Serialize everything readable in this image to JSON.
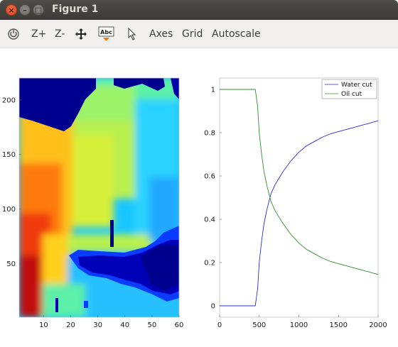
{
  "window": {
    "title": "Figure 1",
    "buttons": [
      "close",
      "minimize",
      "maximize"
    ]
  },
  "toolbar": {
    "items": [
      {
        "kind": "icon",
        "icon": "rotate-icon"
      },
      {
        "kind": "text",
        "label": "Z+"
      },
      {
        "kind": "text",
        "label": "Z-"
      },
      {
        "kind": "icon",
        "icon": "pan-move-icon"
      },
      {
        "kind": "icon",
        "icon": "text-label-icon",
        "glyph": "Abc"
      },
      {
        "kind": "icon",
        "icon": "pointer-icon"
      },
      {
        "kind": "text",
        "label": "Axes"
      },
      {
        "kind": "text",
        "label": "Grid"
      },
      {
        "kind": "text",
        "label": "Autoscale"
      }
    ]
  },
  "chart_data": [
    {
      "type": "heatmap",
      "title": "",
      "xlabel": "",
      "ylabel": "",
      "xlim": [
        1,
        60
      ],
      "ylim": [
        1,
        220
      ],
      "xticks": [
        "10",
        "20",
        "30",
        "40",
        "50",
        "60"
      ],
      "yticks": [
        "50",
        "100",
        "150",
        "200"
      ],
      "colormap": "jet",
      "grid": false,
      "description_of_field": "saturation-like field: high (red/orange) near lower-left injector, low (dark blue) at top-left corner and right-middle pocket"
    },
    {
      "type": "line",
      "title": "",
      "xlabel": "",
      "ylabel": "",
      "xlim": [
        0,
        2000
      ],
      "ylim": [
        0,
        1
      ],
      "xticks": [
        "0",
        "500",
        "1000",
        "1500",
        "2000"
      ],
      "yticks": [
        "0",
        "0.2",
        "0.4",
        "0.6",
        "0.8",
        "1"
      ],
      "legend_position": "top-right",
      "grid": false,
      "series": [
        {
          "name": "Water cut",
          "color": "#2b2bd6",
          "x": [
            0,
            100,
            200,
            300,
            400,
            450,
            480,
            500,
            530,
            560,
            600,
            650,
            700,
            800,
            900,
            1000,
            1100,
            1200,
            1300,
            1400,
            1500,
            1600,
            1700,
            1800,
            1900,
            2000
          ],
          "y": [
            0,
            0,
            0,
            0,
            0,
            0,
            0.08,
            0.2,
            0.3,
            0.38,
            0.45,
            0.52,
            0.56,
            0.62,
            0.67,
            0.71,
            0.74,
            0.76,
            0.78,
            0.795,
            0.805,
            0.815,
            0.825,
            0.835,
            0.845,
            0.855
          ]
        },
        {
          "name": "Oil cut",
          "color": "#2f8f2f",
          "x": [
            0,
            100,
            200,
            300,
            400,
            450,
            480,
            500,
            530,
            560,
            600,
            650,
            700,
            800,
            900,
            1000,
            1100,
            1200,
            1300,
            1400,
            1500,
            1600,
            1700,
            1800,
            1900,
            2000
          ],
          "y": [
            1,
            1,
            1,
            1,
            1,
            1,
            0.92,
            0.8,
            0.7,
            0.62,
            0.55,
            0.48,
            0.44,
            0.38,
            0.33,
            0.29,
            0.26,
            0.24,
            0.22,
            0.205,
            0.195,
            0.185,
            0.175,
            0.165,
            0.155,
            0.145
          ]
        }
      ]
    }
  ]
}
